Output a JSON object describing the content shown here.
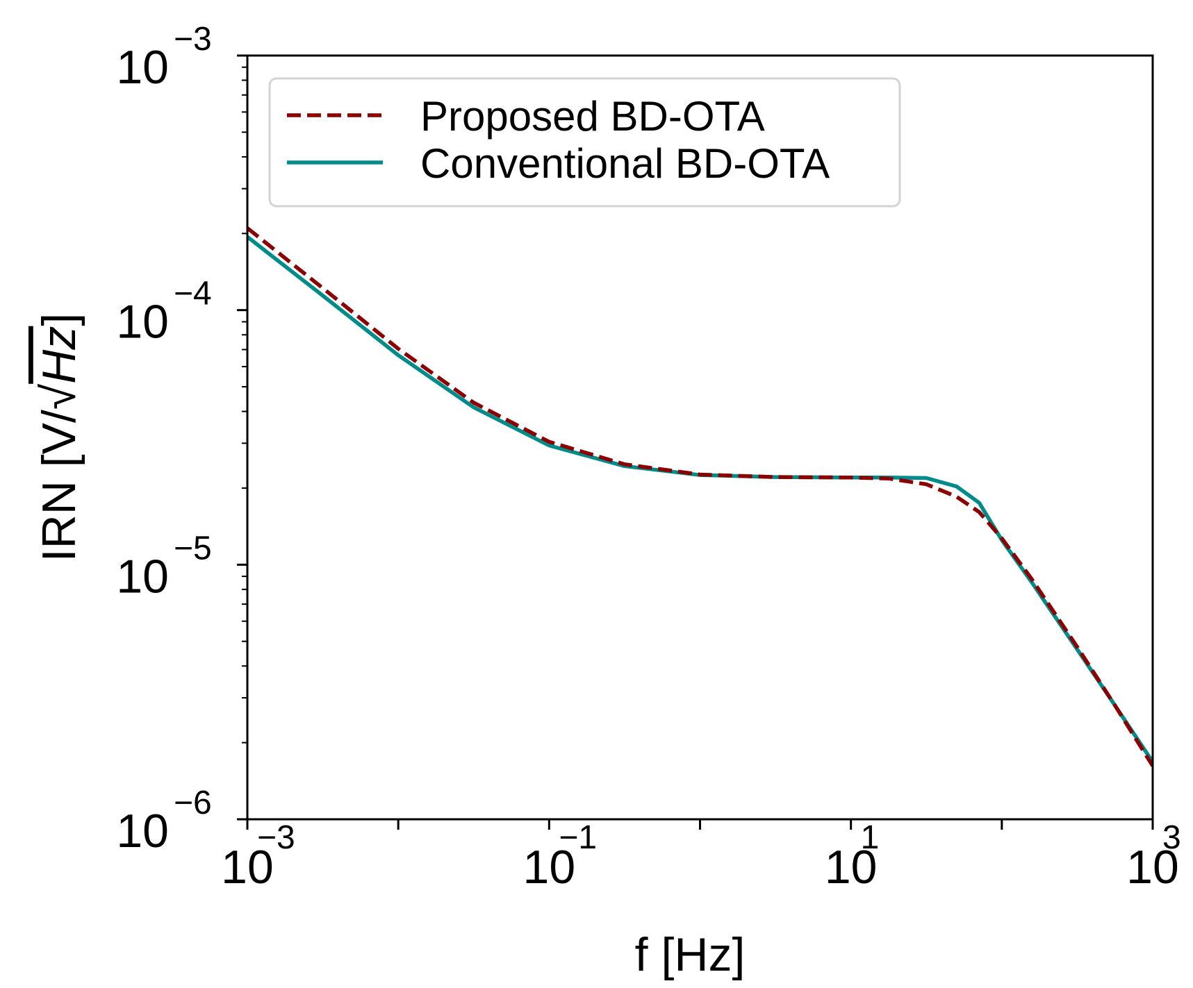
{
  "chart_data": {
    "type": "line",
    "x_scale": "log",
    "y_scale": "log",
    "xlabel": "f [Hz]",
    "ylabel": "IRN [V/√Hz]",
    "ylabel_prefix": "IRN [V/",
    "ylabel_radicand": "Hz",
    "ylabel_suffix": "]",
    "xlim": [
      0.001,
      1000
    ],
    "ylim": [
      1e-06,
      0.001
    ],
    "x_ticks": [
      {
        "exp": -3,
        "base": "10",
        "sup": "−3"
      },
      {
        "exp": -1,
        "base": "10",
        "sup": "−1"
      },
      {
        "exp": 1,
        "base": "10",
        "sup": "1"
      },
      {
        "exp": 3,
        "base": "10",
        "sup": "3"
      }
    ],
    "y_ticks": [
      {
        "exp": -6,
        "base": "10",
        "sup": "−6"
      },
      {
        "exp": -5,
        "base": "10",
        "sup": "−5"
      },
      {
        "exp": -4,
        "base": "10",
        "sup": "−4"
      },
      {
        "exp": -3,
        "base": "10",
        "sup": "−3"
      }
    ],
    "legend_position": "top-left",
    "grid": false,
    "series": [
      {
        "name": "Proposed BD-OTA",
        "color": "#8b0000",
        "style": "dashed",
        "log_x": [
          -3,
          -2.5,
          -2,
          -1.5,
          -1,
          -0.5,
          0,
          0.5,
          1,
          1.25,
          1.5,
          1.7,
          1.85,
          2,
          2.2,
          2.5,
          2.75,
          3
        ],
        "values": [
          0.00021,
          0.000122,
          7.05e-05,
          4.33e-05,
          3.04e-05,
          2.48e-05,
          2.26e-05,
          2.21e-05,
          2.2e-05,
          2.18e-05,
          2.07e-05,
          1.85e-05,
          1.61e-05,
          1.27e-05,
          8.75e-06,
          4.75e-06,
          2.8e-06,
          1.62e-06
        ]
      },
      {
        "name": "Conventional BD-OTA",
        "color": "#008b8b",
        "style": "solid",
        "log_x": [
          -3,
          -2.5,
          -2,
          -1.5,
          -1,
          -0.5,
          0,
          0.5,
          1,
          1.25,
          1.5,
          1.7,
          1.85,
          2,
          2.2,
          2.5,
          2.75,
          3
        ],
        "values": [
          0.000194,
          0.000114,
          6.65e-05,
          4.15e-05,
          2.94e-05,
          2.44e-05,
          2.25e-05,
          2.21e-05,
          2.2e-05,
          2.2e-05,
          2.19e-05,
          2.03e-05,
          1.75e-05,
          1.25e-05,
          8.5e-06,
          4.65e-06,
          2.8e-06,
          1.68e-06
        ]
      }
    ]
  }
}
